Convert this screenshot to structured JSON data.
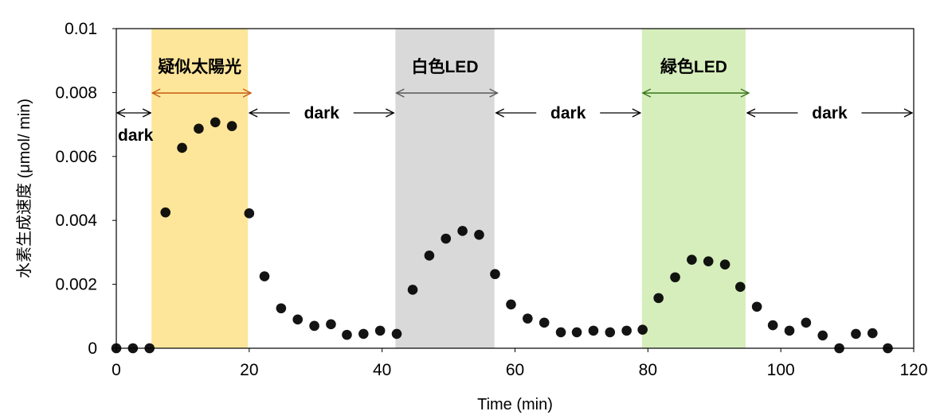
{
  "chart_data": {
    "type": "scatter",
    "xlabel": "Time (min)",
    "ylabel": "水素生成速度 (μmol/ min)",
    "xlim": [
      0,
      120
    ],
    "ylim": [
      0,
      0.01
    ],
    "x_ticks": [
      0,
      20,
      40,
      60,
      80,
      100,
      120
    ],
    "x_tick_labels": [
      "0",
      "20",
      "40",
      "60",
      "80",
      "100",
      "120"
    ],
    "y_ticks": [
      0,
      0.002,
      0.004,
      0.006,
      0.008,
      0.01
    ],
    "y_tick_labels": [
      "0",
      "0.002",
      "0.004",
      "0.006",
      "0.008",
      "0.01"
    ],
    "grid": false,
    "bands": [
      {
        "label": "疑似太陽光",
        "x_start": 5.3,
        "x_end": 19.8,
        "color": "#fde69a",
        "arrow_color": "#c55a11"
      },
      {
        "label": "白色LED",
        "x_start": 42.0,
        "x_end": 56.9,
        "color": "#d9d9d9",
        "arrow_color": "#595959"
      },
      {
        "label": "緑色LED",
        "x_start": 79.1,
        "x_end": 94.7,
        "color": "#d6eebc",
        "arrow_color": "#38761d"
      }
    ],
    "dark_periods": [
      {
        "label": "dark",
        "x_start": 0,
        "x_end": 5.3
      },
      {
        "label": "dark",
        "x_start": 19.8,
        "x_end": 42.0
      },
      {
        "label": "dark",
        "x_start": 56.9,
        "x_end": 79.1
      },
      {
        "label": "dark",
        "x_start": 94.7,
        "x_end": 120
      }
    ],
    "series": [
      {
        "color": "#000000",
        "points": [
          [
            0,
            0
          ],
          [
            2.5,
            0
          ],
          [
            5,
            0
          ],
          [
            7.4,
            0.00425
          ],
          [
            9.9,
            0.00627
          ],
          [
            12.4,
            0.00687
          ],
          [
            14.9,
            0.00707
          ],
          [
            17.4,
            0.00695
          ],
          [
            20.0,
            0.00422
          ],
          [
            22.3,
            0.00225
          ],
          [
            24.8,
            0.00125
          ],
          [
            27.3,
            0.0009
          ],
          [
            29.8,
            0.0007
          ],
          [
            32.3,
            0.00075
          ],
          [
            34.7,
            0.00042
          ],
          [
            37.2,
            0.00045
          ],
          [
            39.7,
            0.00055
          ],
          [
            42.2,
            0.00045
          ],
          [
            44.6,
            0.00183
          ],
          [
            47.1,
            0.0029
          ],
          [
            49.6,
            0.00343
          ],
          [
            52.1,
            0.00367
          ],
          [
            54.6,
            0.00355
          ],
          [
            57.0,
            0.00232
          ],
          [
            59.4,
            0.00137
          ],
          [
            61.9,
            0.00093
          ],
          [
            64.4,
            0.0008
          ],
          [
            66.9,
            0.0005
          ],
          [
            69.3,
            0.0005
          ],
          [
            71.8,
            0.00055
          ],
          [
            74.3,
            0.0005
          ],
          [
            76.8,
            0.00055
          ],
          [
            79.2,
            0.00058
          ],
          [
            81.6,
            0.00157
          ],
          [
            84.1,
            0.00222
          ],
          [
            86.6,
            0.00277
          ],
          [
            89.1,
            0.00272
          ],
          [
            91.6,
            0.00262
          ],
          [
            93.9,
            0.00192
          ],
          [
            96.4,
            0.0013
          ],
          [
            98.8,
            0.00072
          ],
          [
            101.3,
            0.00055
          ],
          [
            103.8,
            0.0008
          ],
          [
            106.3,
            0.0004
          ],
          [
            108.8,
            0
          ],
          [
            111.3,
            0.00045
          ],
          [
            113.8,
            0.00047
          ],
          [
            116.1,
            0
          ]
        ]
      }
    ]
  }
}
